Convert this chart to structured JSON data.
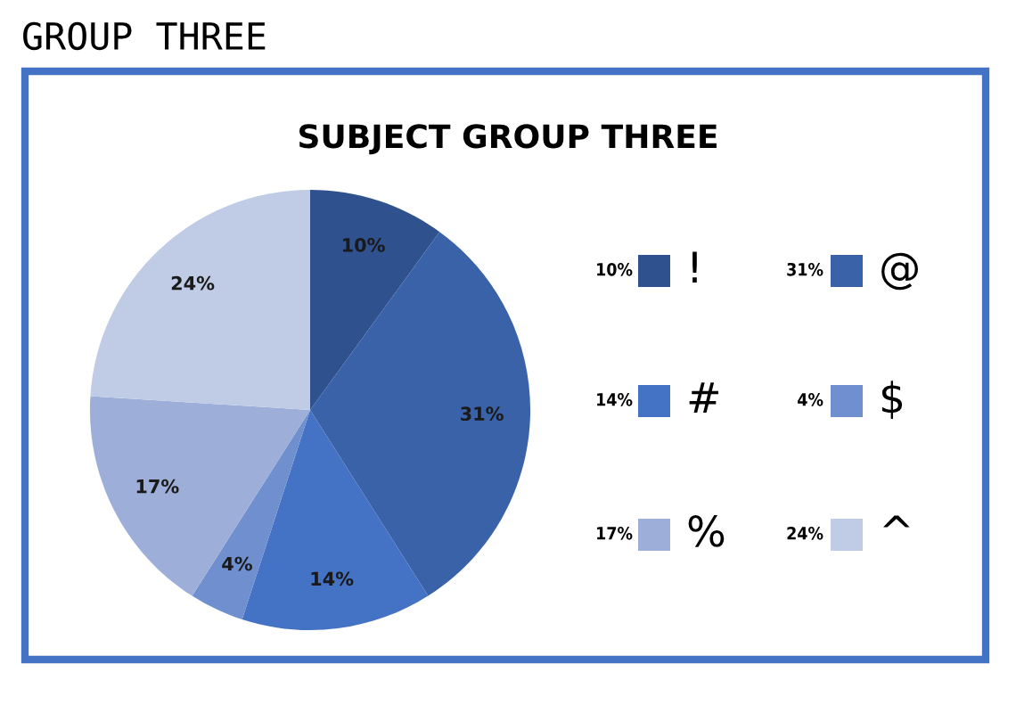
{
  "chart_data": {
    "type": "pie",
    "title": "GROUP THREE",
    "subtitle": "SUBJECT GROUP THREE",
    "categories": [
      "!",
      "@",
      "#",
      "$",
      "%",
      "^"
    ],
    "values": [
      10,
      31,
      14,
      4,
      17,
      24
    ],
    "value_labels": [
      "10%",
      "31%",
      "14%",
      "4%",
      "17%",
      "24%"
    ],
    "colors": [
      "#2f528f",
      "#3a62a8",
      "#4472c4",
      "#6f8fcf",
      "#9dafd9",
      "#c0cbe6"
    ],
    "legend": "right"
  }
}
